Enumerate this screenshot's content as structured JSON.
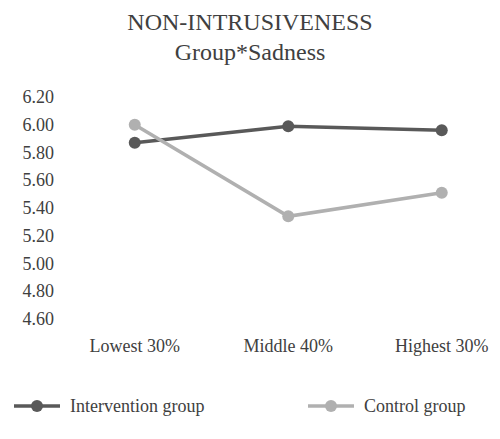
{
  "chart_data": {
    "type": "line",
    "title": "NON-INTRUSIVENESS",
    "subtitle": "Group*Sadness",
    "categories": [
      "Lowest 30%",
      "Middle 40%",
      "Highest 30%"
    ],
    "series": [
      {
        "name": "Intervention group",
        "color": "#595959",
        "marker": "circle",
        "line_style": "solid",
        "values": [
          5.87,
          5.99,
          5.96
        ]
      },
      {
        "name": "Control group",
        "color": "#b0b0b0",
        "marker": "circle",
        "line_style": "solid",
        "values": [
          6.0,
          5.34,
          5.51
        ]
      }
    ],
    "ylim": [
      4.6,
      6.2
    ],
    "yticks": [
      {
        "value": 4.6,
        "label": "4.60"
      },
      {
        "value": 4.8,
        "label": "4.80"
      },
      {
        "value": 5.0,
        "label": "5.00"
      },
      {
        "value": 5.2,
        "label": "5.20"
      },
      {
        "value": 5.4,
        "label": "5.40"
      },
      {
        "value": 5.6,
        "label": "5.60"
      },
      {
        "value": 5.8,
        "label": "5.80"
      },
      {
        "value": 6.0,
        "label": "6.00"
      },
      {
        "value": 6.2,
        "label": "6.20"
      }
    ],
    "grid": false,
    "legend": "bottom"
  }
}
